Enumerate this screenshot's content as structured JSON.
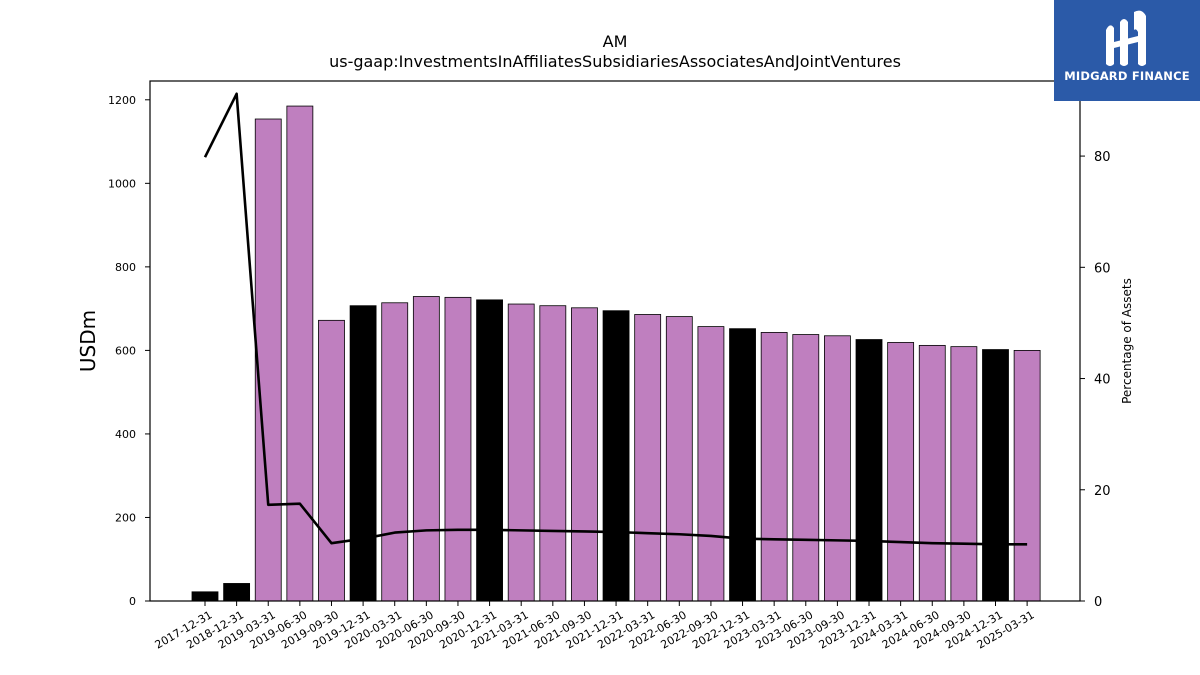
{
  "title": {
    "line1": "AM",
    "line2": "us-gaap:InvestmentsInAffiliatesSubsidiariesAssociatesAndJointVentures"
  },
  "logo": {
    "text": "MIDGARD FINANCE"
  },
  "colors": {
    "bar_quarter": "#bf7fbf",
    "bar_year_end": "#000000",
    "line": "#000000",
    "logo_bg": "#2b5aa8"
  },
  "chart_data": {
    "type": "bar",
    "ylabel": "USDm",
    "y2label": "Percentage of Assets",
    "ylim": [
      0,
      1245
    ],
    "y2lim": [
      0,
      93.5
    ],
    "yticks": [
      0,
      200,
      400,
      600,
      800,
      1000,
      1200
    ],
    "y2ticks": [
      0,
      20,
      40,
      60,
      80
    ],
    "categories": [
      "2017-12-31",
      "2018-12-31",
      "2019-03-31",
      "2019-06-30",
      "2019-09-30",
      "2019-12-31",
      "2020-03-31",
      "2020-06-30",
      "2020-09-30",
      "2020-12-31",
      "2021-03-31",
      "2021-06-30",
      "2021-09-30",
      "2021-12-31",
      "2022-03-31",
      "2022-06-30",
      "2022-09-30",
      "2022-12-31",
      "2023-03-31",
      "2023-06-30",
      "2023-09-30",
      "2023-12-31",
      "2024-03-31",
      "2024-06-30",
      "2024-09-30",
      "2024-12-31",
      "2025-03-31"
    ],
    "series": [
      {
        "type": "bar",
        "values": [
          22,
          42,
          1154,
          1185,
          672,
          707,
          714,
          729,
          727,
          721,
          711,
          707,
          702,
          695,
          686,
          681,
          657,
          652,
          643,
          638,
          635,
          626,
          619,
          612,
          609,
          602,
          600
        ],
        "year_end": [
          true,
          true,
          false,
          false,
          false,
          true,
          false,
          false,
          false,
          true,
          false,
          false,
          false,
          true,
          false,
          false,
          false,
          true,
          false,
          false,
          false,
          true,
          false,
          false,
          false,
          true,
          false
        ]
      },
      {
        "type": "line",
        "axis": "right",
        "values": [
          79.8,
          91.2,
          17.3,
          17.5,
          10.4,
          11.2,
          12.3,
          12.7,
          12.8,
          12.8,
          12.7,
          12.6,
          12.5,
          12.4,
          12.2,
          12.0,
          11.7,
          11.2,
          11.1,
          11.0,
          10.9,
          10.8,
          10.6,
          10.4,
          10.3,
          10.2,
          10.2
        ]
      }
    ]
  }
}
